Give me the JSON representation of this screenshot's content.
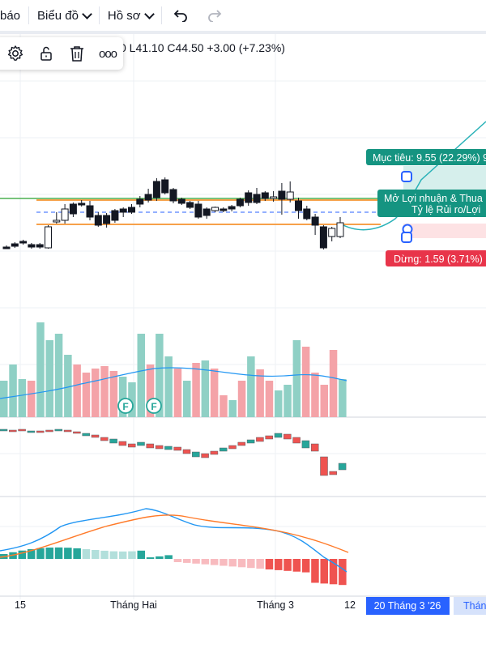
{
  "toolbar": {
    "alerts_partial": "báo",
    "chart_menu": "Biểu đồ",
    "profile_menu": "Hồ sơ",
    "undo_icon": "undo-icon",
    "redo_icon": "redo-icon"
  },
  "ohlc_text": "0  L41.10  C44.50  +3.00 (+7.23%)",
  "drawing_toolbar": {
    "icons": [
      "gear-icon",
      "unlock-icon",
      "trash-icon",
      "more-icon"
    ],
    "more_label": "ooo"
  },
  "position_tool": {
    "target_label": "Mục tiêu: 9.55 (22.29%) 9",
    "pnl_line1": "Mở Lợi nhuận & Thua",
    "pnl_line2": "Tỷ lệ Rủi ro/Lợi",
    "stop_label": "Dừng: 1.59 (3.71%) 1"
  },
  "badges": [
    "F",
    "F"
  ],
  "time_axis": {
    "labels": [
      "15",
      "Tháng Hai",
      "Tháng 3",
      "12"
    ],
    "selected_date": "20 Tháng 3 '26",
    "partial_label": "Thán"
  },
  "colors": {
    "up": "#26a69a",
    "down": "#ef5350",
    "up_volume": "#8fd0c5",
    "down_volume": "#f4a3a8",
    "orange": "#f7a14a",
    "green_line": "#4caf50",
    "dash_blue": "#2962ff",
    "macd_line": "#2196f3",
    "signal_line": "#ff7a29",
    "date_badge": "#2962ff"
  }
}
